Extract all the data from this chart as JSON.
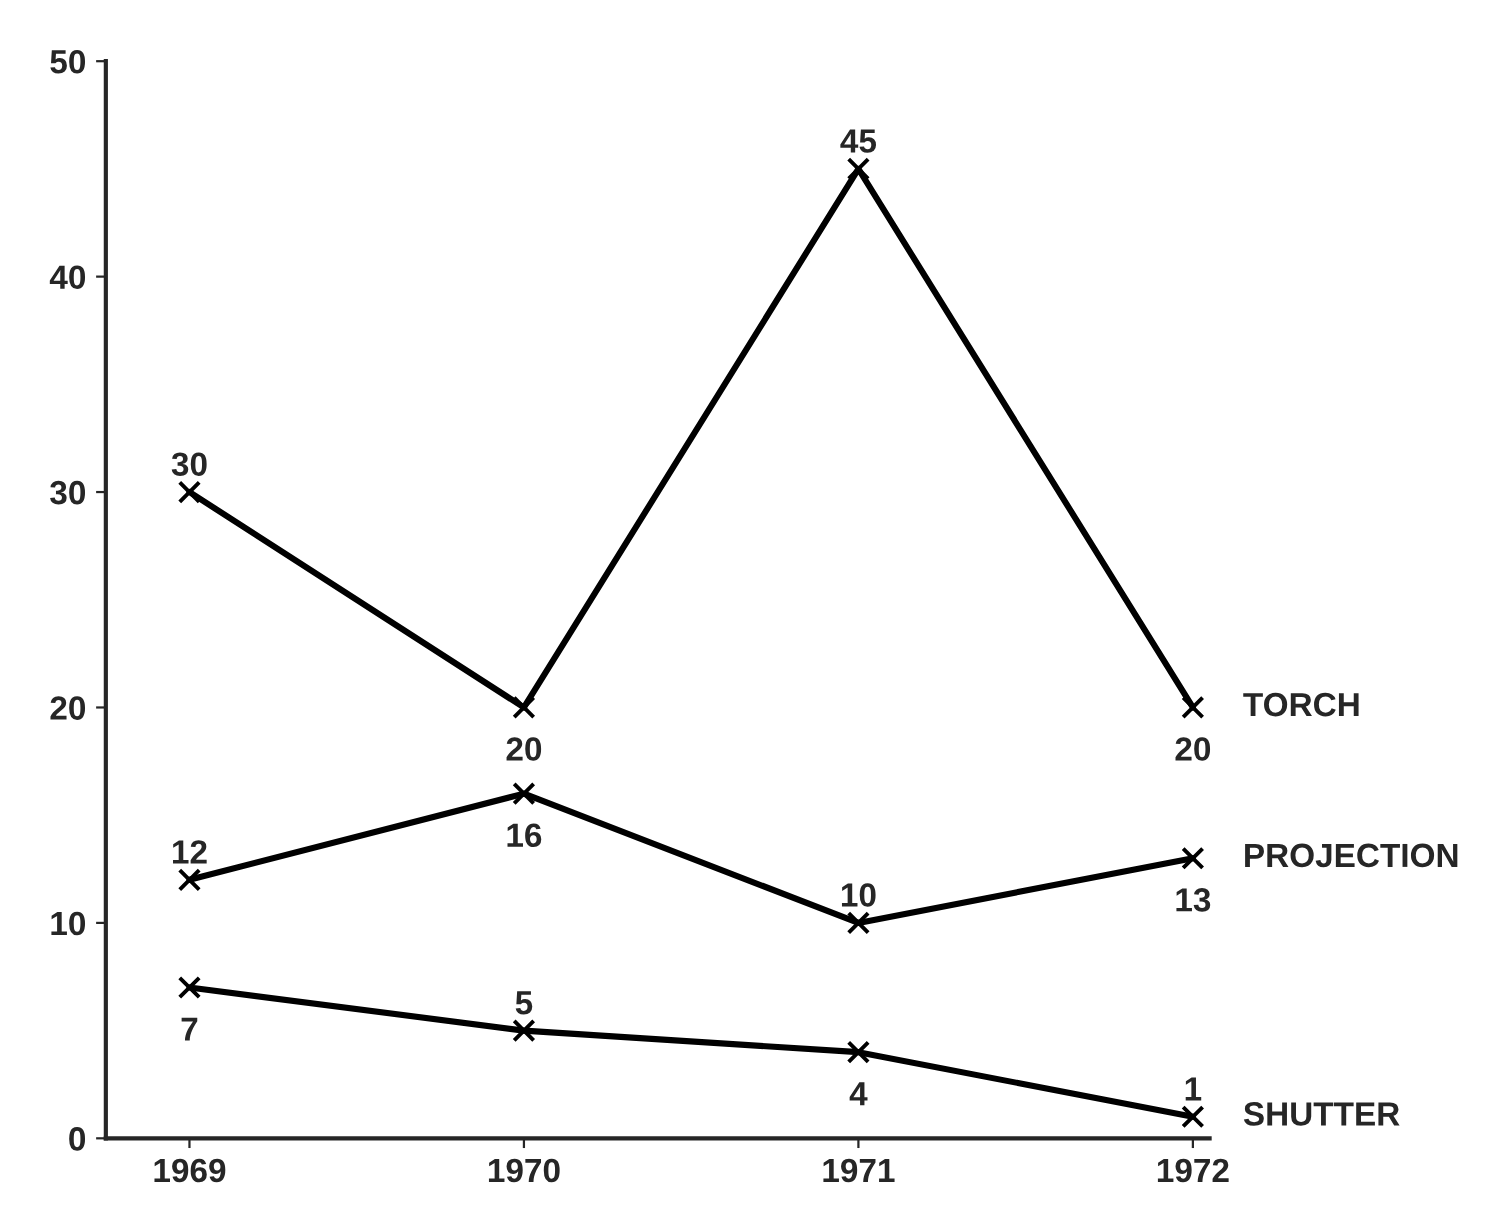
{
  "chart_data": {
    "type": "line",
    "categories": [
      "1969",
      "1970",
      "1971",
      "1972"
    ],
    "series": [
      {
        "name": "TORCH",
        "color": "#000000",
        "values": [
          30,
          20,
          45,
          20
        ]
      },
      {
        "name": "PROJECTION",
        "color": "#000000",
        "values": [
          12,
          16,
          10,
          13
        ]
      },
      {
        "name": "SHUTTER",
        "color": "#000000",
        "values": [
          7,
          5,
          4,
          1
        ]
      }
    ],
    "ylim": [
      0,
      50
    ],
    "yticks": [
      0,
      10,
      20,
      30,
      40,
      50
    ],
    "marker": "cross",
    "line_style": "solid",
    "data_labels": true,
    "grid": false,
    "legend": false
  }
}
